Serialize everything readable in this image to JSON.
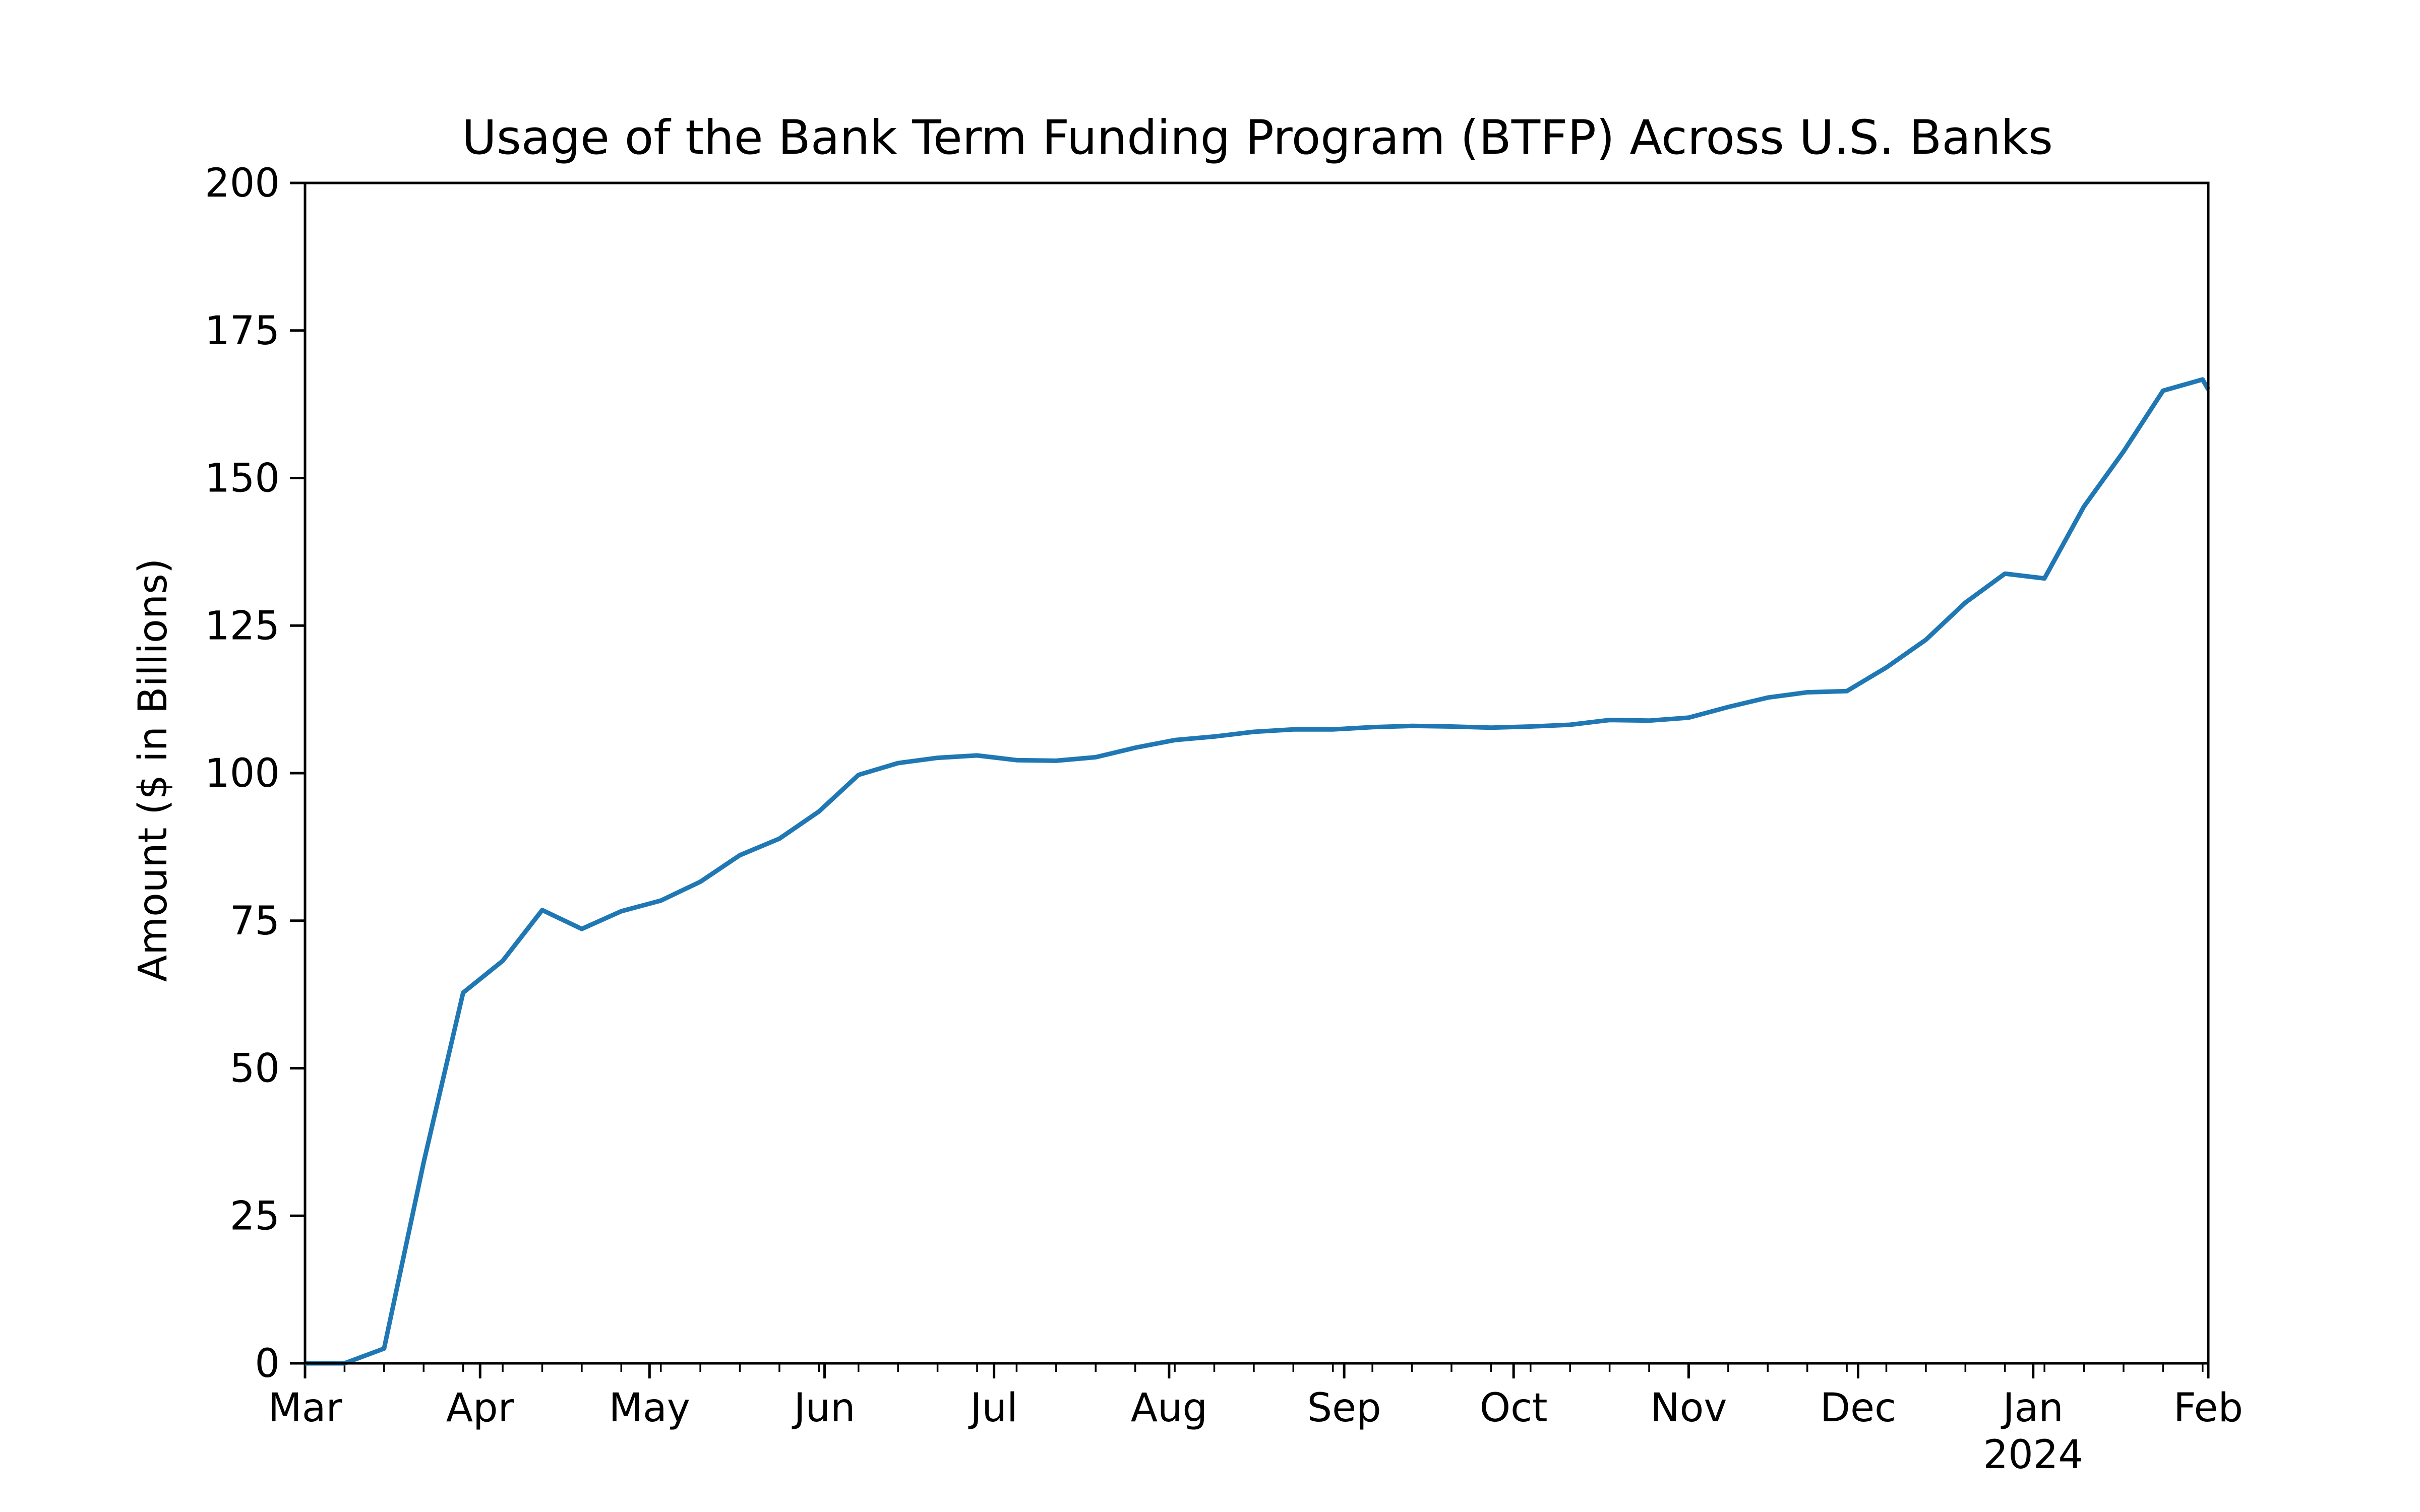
{
  "chart_data": {
    "type": "line",
    "title": "Usage of the Bank Term Funding Program (BTFP) Across U.S. Banks",
    "xlabel": "",
    "ylabel": "Amount ($ in Billions)",
    "ylim": [
      0,
      200
    ],
    "xlim": [
      "2023-03-01",
      "2024-02-01"
    ],
    "yticks": [
      0,
      25,
      50,
      75,
      100,
      125,
      150,
      175,
      200
    ],
    "xticks": [
      {
        "date": "2023-03-01",
        "label": "Mar"
      },
      {
        "date": "2023-04-01",
        "label": "Apr"
      },
      {
        "date": "2023-05-01",
        "label": "May"
      },
      {
        "date": "2023-06-01",
        "label": "Jun"
      },
      {
        "date": "2023-07-01",
        "label": "Jul"
      },
      {
        "date": "2023-08-01",
        "label": "Aug"
      },
      {
        "date": "2023-09-01",
        "label": "Sep"
      },
      {
        "date": "2023-10-01",
        "label": "Oct"
      },
      {
        "date": "2023-11-01",
        "label": "Nov"
      },
      {
        "date": "2023-12-01",
        "label": "Dec"
      },
      {
        "date": "2024-01-01",
        "label": "Jan",
        "sublabel": "2024"
      },
      {
        "date": "2024-02-01",
        "label": "Feb"
      }
    ],
    "minor_ticks": [
      "2023-03-08",
      "2023-03-15",
      "2023-03-22",
      "2023-03-29",
      "2023-04-05",
      "2023-04-12",
      "2023-04-19",
      "2023-04-26",
      "2023-05-03",
      "2023-05-10",
      "2023-05-17",
      "2023-05-24",
      "2023-05-31",
      "2023-06-07",
      "2023-06-14",
      "2023-06-21",
      "2023-06-28",
      "2023-07-05",
      "2023-07-12",
      "2023-07-19",
      "2023-07-26",
      "2023-08-02",
      "2023-08-09",
      "2023-08-16",
      "2023-08-23",
      "2023-08-30",
      "2023-09-06",
      "2023-09-13",
      "2023-09-20",
      "2023-09-27",
      "2023-10-04",
      "2023-10-11",
      "2023-10-18",
      "2023-10-25",
      "2023-11-01",
      "2023-11-08",
      "2023-11-15",
      "2023-11-22",
      "2023-11-29",
      "2023-12-06",
      "2023-12-13",
      "2023-12-20",
      "2023-12-27",
      "2024-01-03",
      "2024-01-10",
      "2024-01-17",
      "2024-01-24",
      "2024-01-31"
    ],
    "grid": false,
    "legend": "none",
    "color": "#1f77b4",
    "series": [
      {
        "x": [
          "2023-03-01",
          "2023-03-08",
          "2023-03-15",
          "2023-03-22",
          "2023-03-29",
          "2023-04-05",
          "2023-04-12",
          "2023-04-19",
          "2023-04-26",
          "2023-05-03",
          "2023-05-10",
          "2023-05-17",
          "2023-05-24",
          "2023-05-31",
          "2023-06-07",
          "2023-06-14",
          "2023-06-21",
          "2023-06-28",
          "2023-07-05",
          "2023-07-12",
          "2023-07-19",
          "2023-07-26",
          "2023-08-02",
          "2023-08-09",
          "2023-08-16",
          "2023-08-23",
          "2023-08-30",
          "2023-09-06",
          "2023-09-13",
          "2023-09-20",
          "2023-09-27",
          "2023-10-04",
          "2023-10-11",
          "2023-10-18",
          "2023-10-25",
          "2023-11-01",
          "2023-11-08",
          "2023-11-15",
          "2023-11-22",
          "2023-11-29",
          "2023-12-06",
          "2023-12-13",
          "2023-12-20",
          "2023-12-27",
          "2024-01-03",
          "2024-01-10",
          "2024-01-17",
          "2024-01-24",
          "2024-01-31",
          "2024-02-01"
        ],
        "values": [
          0,
          0,
          2.5,
          34,
          62.8,
          68.2,
          76.8,
          73.6,
          76.6,
          78.4,
          81.6,
          86.1,
          88.9,
          93.5,
          99.7,
          101.7,
          102.6,
          103.0,
          102.2,
          102.1,
          102.7,
          104.3,
          105.6,
          106.2,
          107.0,
          107.4,
          107.4,
          107.8,
          108.0,
          107.9,
          107.7,
          107.9,
          108.2,
          109.0,
          108.9,
          109.4,
          111.2,
          112.8,
          113.7,
          113.9,
          117.9,
          122.6,
          128.9,
          133.8,
          133.0,
          145.2,
          154.5,
          164.8,
          166.7,
          165.0
        ]
      }
    ]
  }
}
